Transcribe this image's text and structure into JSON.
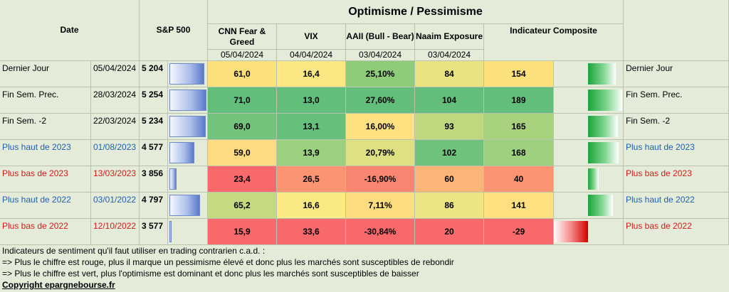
{
  "header": {
    "date": "Date",
    "sp500": "S&P 500",
    "group_title": "Optimisme / Pessimisme",
    "cnn": "CNN Fear & Greed",
    "vix": "VIX",
    "aaii": "AAII (Bull - Bear)",
    "naaim": "Naaim Exposure",
    "composite": "Indicateur Composite",
    "date_cnn": "05/04/2024",
    "date_vix": "04/04/2024",
    "date_aaii": "03/04/2024",
    "date_naaim": "03/04/2024"
  },
  "rows": [
    {
      "label": "Dernier Jour",
      "date": "05/04/2024",
      "sp": "5 204",
      "sp_level": 0.95,
      "cnn": "61,0",
      "vix": "16,4",
      "aaii": "25,10%",
      "naaim": "84",
      "comp": "154",
      "comp_level": 0.82,
      "right": "Dernier Jour",
      "label_color": "#000000",
      "colors": [
        "#fbe07c",
        "#fbe884",
        "#8fcc7a",
        "#e9e382",
        "#fbe07c"
      ]
    },
    {
      "label": "Fin Sem. Prec.",
      "date": "28/03/2024",
      "sp": "5 254",
      "sp_level": 1.0,
      "cnn": "71,0",
      "vix": "13,0",
      "aaii": "27,60%",
      "naaim": "104",
      "comp": "189",
      "comp_level": 1.0,
      "right": "Fin Sem. Prec.",
      "label_color": "#000000",
      "colors": [
        "#63be7b",
        "#63be7b",
        "#63be7b",
        "#63be7b",
        "#63be7b"
      ]
    },
    {
      "label": "Fin Sem. -2",
      "date": "22/03/2024",
      "sp": "5 234",
      "sp_level": 0.98,
      "cnn": "69,0",
      "vix": "13,1",
      "aaii": "16,00%",
      "naaim": "93",
      "comp": "165",
      "comp_level": 0.88,
      "right": "Fin Sem. -2",
      "label_color": "#000000",
      "colors": [
        "#74c37c",
        "#66bf7b",
        "#ffe182",
        "#bfd880",
        "#a9d27f"
      ]
    },
    {
      "label": "Plus haut de 2023",
      "date": "01/08/2023",
      "sp": "4 577",
      "sp_level": 0.68,
      "cnn": "59,0",
      "vix": "13,9",
      "aaii": "20,79%",
      "naaim": "102",
      "comp": "168",
      "comp_level": 0.89,
      "right": "Plus haut de 2023",
      "label_color": "#1f5fb0",
      "colors": [
        "#fedb81",
        "#9ad07f",
        "#dde182",
        "#6fc27c",
        "#9fd07f"
      ]
    },
    {
      "label": "Plus bas de 2023",
      "date": "13/03/2023",
      "sp": "3 856",
      "sp_level": 0.2,
      "cnn": "23,4",
      "vix": "26,5",
      "aaii": "-16,90%",
      "naaim": "60",
      "comp": "40",
      "comp_level": 0.32,
      "right": "Plus bas de 2023",
      "label_color": "#d01a1a",
      "colors": [
        "#f8696b",
        "#fa9473",
        "#f98670",
        "#fcb579",
        "#fa9473"
      ]
    },
    {
      "label": "Plus haut de 2022",
      "date": "03/01/2022",
      "sp": "4 797",
      "sp_level": 0.82,
      "cnn": "65,2",
      "vix": "16,6",
      "aaii": "7,11%",
      "naaim": "86",
      "comp": "141",
      "comp_level": 0.72,
      "right": "Plus haut de 2022",
      "label_color": "#1f5fb0",
      "colors": [
        "#c4d980",
        "#fbe983",
        "#fedd81",
        "#ede582",
        "#fee081"
      ]
    },
    {
      "label": "Plus bas de 2022",
      "date": "12/10/2022",
      "sp": "3 577",
      "sp_level": 0.05,
      "cnn": "15,9",
      "vix": "33,6",
      "aaii": "-30,84%",
      "naaim": "20",
      "comp": "-29",
      "comp_level": -1.0,
      "right": "Plus bas de 2022",
      "label_color": "#d01a1a",
      "colors": [
        "#f8696b",
        "#f8696b",
        "#f8696b",
        "#f8696b",
        "#f8696b"
      ]
    }
  ],
  "footer": {
    "line1": "Indicateurs de sentiment qu'il faut utiliser en trading contrarien c.a.d. :",
    "line2": "=> Plus le chiffre est rouge, plus il marque un pessimisme élevé et donc plus les marchés sont susceptibles de rebondir",
    "line3": "=> Plus le chiffre est vert, plus l'optimisme est dominant et donc plus les marchés sont susceptibles de baisser",
    "copyright": "Copyright epargnebourse.fr"
  }
}
